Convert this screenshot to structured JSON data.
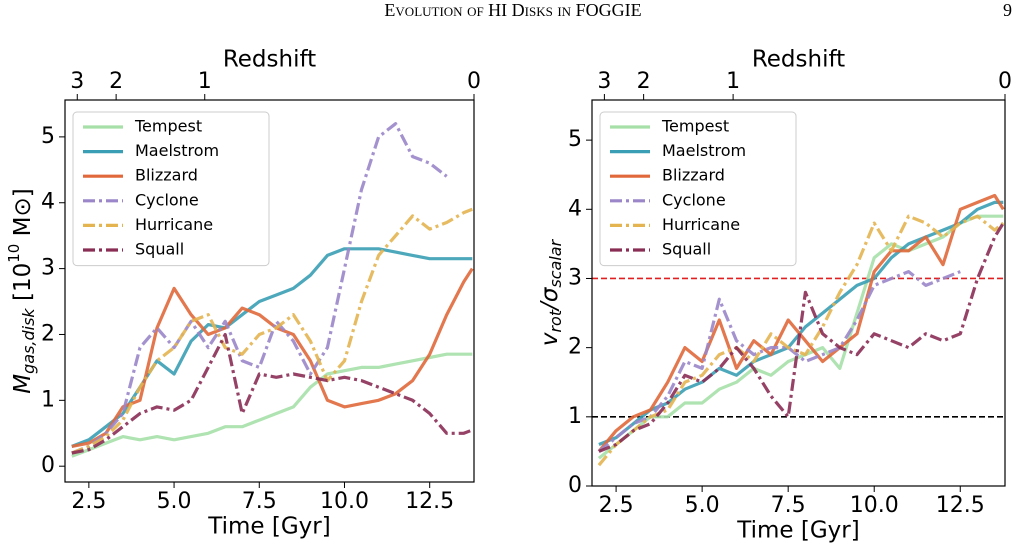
{
  "header": {
    "title": "Evolution of HI Disks in FOGGIE",
    "page": "9"
  },
  "chart_data": [
    {
      "type": "line",
      "x_top_label": "Redshift",
      "xlabel": "Time [Gyr]",
      "ylabel": {
        "main": "M",
        "sub": "gas,disk",
        "rest": " [10",
        "sup": "10",
        "unit": " M⊙]"
      },
      "xlim": [
        1.8,
        13.8
      ],
      "xticks": [
        2.5,
        5.0,
        7.5,
        10.0,
        12.5
      ],
      "x_top_ticks": [
        {
          "value": 2.16,
          "label": "3"
        },
        {
          "value": 3.3,
          "label": "2"
        },
        {
          "value": 5.9,
          "label": "1"
        },
        {
          "value": 13.8,
          "label": "0"
        }
      ],
      "ylim": [
        -0.24,
        5.56
      ],
      "yticks": [
        0,
        1,
        2,
        3,
        4,
        5
      ],
      "legend": "upper left",
      "hlines": [],
      "x": [
        2.0,
        2.5,
        3.0,
        3.5,
        4.0,
        4.5,
        5.0,
        5.5,
        6.0,
        6.5,
        7.0,
        7.5,
        8.0,
        8.5,
        9.0,
        9.5,
        10.0,
        10.5,
        11.0,
        11.5,
        12.0,
        12.5,
        13.0,
        13.5,
        13.75
      ],
      "series": [
        {
          "name": "Tempest",
          "color": "#a6e0a8",
          "linestyle": "solid",
          "values": [
            0.15,
            0.25,
            0.35,
            0.45,
            0.4,
            0.45,
            0.4,
            0.45,
            0.5,
            0.6,
            0.6,
            0.7,
            0.8,
            0.9,
            1.2,
            1.4,
            1.45,
            1.5,
            1.5,
            1.55,
            1.6,
            1.65,
            1.7,
            1.7,
            1.7
          ]
        },
        {
          "name": "Maelstrom",
          "color": "#3a9fb5",
          "linestyle": "solid",
          "values": [
            0.3,
            0.4,
            0.6,
            0.8,
            1.2,
            1.6,
            1.4,
            1.9,
            2.15,
            2.1,
            2.3,
            2.5,
            2.6,
            2.7,
            2.9,
            3.2,
            3.3,
            3.3,
            3.3,
            3.25,
            3.2,
            3.15,
            3.15,
            3.15,
            3.15
          ]
        },
        {
          "name": "Blizzard",
          "color": "#e0683a",
          "linestyle": "solid",
          "values": [
            0.3,
            0.35,
            0.5,
            0.9,
            1.0,
            2.1,
            2.7,
            2.3,
            2.0,
            2.1,
            2.4,
            2.3,
            2.1,
            2.0,
            1.6,
            1.0,
            0.9,
            0.95,
            1.0,
            1.1,
            1.3,
            1.7,
            2.3,
            2.8,
            3.0
          ]
        },
        {
          "name": "Cyclone",
          "color": "#9a86c9",
          "linestyle": "dashdot",
          "values": [
            0.2,
            0.3,
            0.5,
            0.8,
            1.8,
            2.1,
            1.8,
            2.2,
            1.8,
            2.2,
            1.6,
            1.5,
            2.2,
            1.9,
            1.4,
            1.8,
            3.0,
            4.2,
            5.0,
            5.2,
            4.7,
            4.6,
            4.4,
            null,
            null
          ]
        },
        {
          "name": "Hurricane",
          "color": "#e3b450",
          "linestyle": "dashdot",
          "values": [
            0.2,
            0.3,
            0.45,
            0.7,
            1.2,
            1.6,
            1.8,
            2.2,
            2.3,
            1.8,
            1.7,
            2.0,
            2.1,
            2.3,
            1.9,
            1.3,
            1.6,
            2.5,
            3.2,
            3.5,
            3.8,
            3.6,
            3.7,
            3.85,
            3.9
          ]
        },
        {
          "name": "Squall",
          "color": "#8a2d55",
          "linestyle": "dashdot",
          "values": [
            0.2,
            0.25,
            0.4,
            0.6,
            0.8,
            0.9,
            0.85,
            1.0,
            1.5,
            2.0,
            0.8,
            1.4,
            1.35,
            1.4,
            1.35,
            1.3,
            1.35,
            1.3,
            1.2,
            1.1,
            1.0,
            0.8,
            0.5,
            0.5,
            0.55
          ]
        }
      ]
    },
    {
      "type": "line",
      "x_top_label": "Redshift",
      "xlabel": "Time [Gyr]",
      "ylabel": {
        "main": "v",
        "sub": "rot",
        "rest": "/σ",
        "sub2": "scalar"
      },
      "xlim": [
        1.8,
        13.8
      ],
      "xticks": [
        2.5,
        5.0,
        7.5,
        10.0,
        12.5
      ],
      "x_top_ticks": [
        {
          "value": 2.16,
          "label": "3"
        },
        {
          "value": 3.3,
          "label": "2"
        },
        {
          "value": 5.9,
          "label": "1"
        },
        {
          "value": 13.8,
          "label": "0"
        }
      ],
      "ylim": [
        0,
        5.58
      ],
      "yticks": [
        0,
        1,
        2,
        3,
        4,
        5
      ],
      "legend": "upper left",
      "hlines": [
        {
          "value": 3,
          "color": "#e02020"
        },
        {
          "value": 1,
          "color": "#000000"
        }
      ],
      "x": [
        2.0,
        2.5,
        3.0,
        3.5,
        4.0,
        4.5,
        5.0,
        5.5,
        6.0,
        6.5,
        7.0,
        7.5,
        8.0,
        8.5,
        9.0,
        9.5,
        10.0,
        10.5,
        11.0,
        11.5,
        12.0,
        12.5,
        13.0,
        13.5,
        13.75
      ],
      "series": [
        {
          "name": "Tempest",
          "color": "#a6e0a8",
          "linestyle": "solid",
          "values": [
            0.4,
            0.6,
            0.8,
            1.0,
            1.0,
            1.2,
            1.2,
            1.4,
            1.5,
            1.7,
            1.6,
            1.8,
            1.9,
            2.0,
            1.7,
            2.5,
            3.3,
            3.5,
            3.4,
            3.5,
            3.6,
            3.8,
            3.9,
            3.9,
            3.9
          ]
        },
        {
          "name": "Maelstrom",
          "color": "#3a9fb5",
          "linestyle": "solid",
          "values": [
            0.6,
            0.7,
            0.9,
            1.1,
            1.2,
            1.4,
            1.5,
            1.7,
            1.6,
            1.8,
            1.9,
            2.0,
            2.3,
            2.5,
            2.7,
            2.9,
            3.0,
            3.3,
            3.5,
            3.6,
            3.7,
            3.8,
            4.0,
            4.1,
            4.1
          ]
        },
        {
          "name": "Blizzard",
          "color": "#e0683a",
          "linestyle": "solid",
          "values": [
            0.5,
            0.8,
            1.0,
            1.1,
            1.5,
            2.0,
            1.8,
            2.4,
            1.7,
            2.1,
            1.9,
            2.4,
            2.1,
            1.8,
            2.0,
            2.2,
            3.1,
            3.4,
            3.4,
            3.6,
            3.2,
            4.0,
            4.1,
            4.2,
            4.0
          ]
        },
        {
          "name": "Cyclone",
          "color": "#9a86c9",
          "linestyle": "dashdot",
          "values": [
            0.5,
            0.7,
            0.9,
            1.0,
            1.3,
            1.8,
            1.7,
            2.7,
            2.1,
            1.9,
            2.0,
            2.0,
            1.8,
            1.9,
            2.0,
            2.4,
            2.9,
            3.0,
            3.1,
            2.9,
            3.0,
            3.1,
            null,
            null,
            null
          ]
        },
        {
          "name": "Hurricane",
          "color": "#e3b450",
          "linestyle": "dashdot",
          "values": [
            0.3,
            0.6,
            0.8,
            1.0,
            1.1,
            1.5,
            1.6,
            1.9,
            2.0,
            1.8,
            2.2,
            2.0,
            1.9,
            2.3,
            2.8,
            3.2,
            3.8,
            3.4,
            3.9,
            3.8,
            3.6,
            3.8,
            3.9,
            3.7,
            3.8
          ]
        },
        {
          "name": "Squall",
          "color": "#8a2d55",
          "linestyle": "dashdot",
          "values": [
            0.5,
            0.6,
            0.8,
            0.9,
            1.2,
            1.6,
            1.5,
            1.7,
            2.0,
            1.7,
            1.3,
            1.0,
            2.8,
            2.2,
            2.0,
            1.9,
            2.2,
            2.1,
            2.0,
            2.2,
            2.1,
            2.2,
            3.0,
            3.6,
            3.8
          ]
        }
      ]
    }
  ]
}
